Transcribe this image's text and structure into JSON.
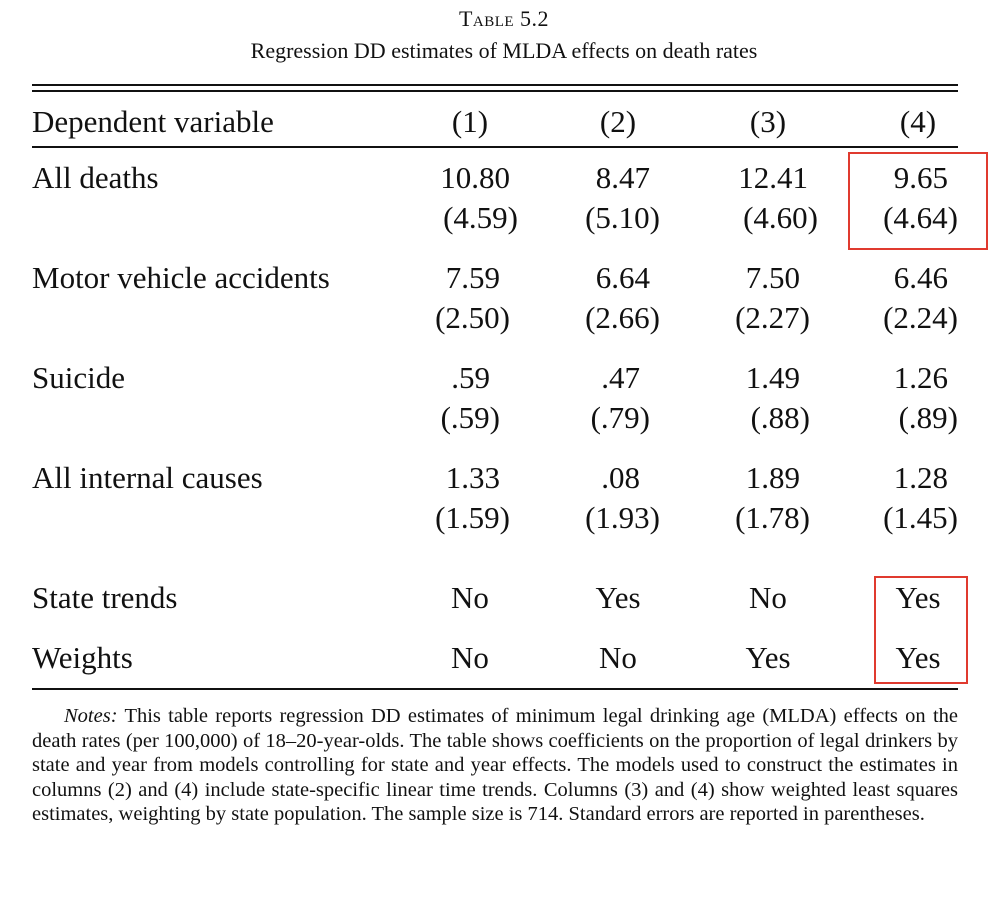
{
  "table": {
    "label": "Table 5.2",
    "title": "Regression DD estimates of MLDA effects on death rates",
    "header": {
      "row_label": "Dependent variable",
      "columns": [
        "(1)",
        "(2)",
        "(3)",
        "(4)"
      ]
    },
    "rows": [
      {
        "label": "All deaths",
        "coefs": [
          "10.80",
          "8.47",
          "12.41",
          "9.65"
        ],
        "ses": [
          "(4.59)",
          "(5.10)",
          "(4.60)",
          "(4.64)"
        ]
      },
      {
        "label": "Motor vehicle accidents",
        "coefs": [
          "7.59",
          "6.64",
          "7.50",
          "6.46"
        ],
        "ses": [
          "(2.50)",
          "(2.66)",
          "(2.27)",
          "(2.24)"
        ]
      },
      {
        "label": "Suicide",
        "coefs": [
          ".59",
          ".47",
          "1.49",
          "1.26"
        ],
        "ses": [
          "(.59)",
          "(.79)",
          "(.88)",
          "(.89)"
        ]
      },
      {
        "label": "All internal causes",
        "coefs": [
          "1.33",
          ".08",
          "1.89",
          "1.28"
        ],
        "ses": [
          "(1.59)",
          "(1.93)",
          "(1.78)",
          "(1.45)"
        ]
      }
    ],
    "specs": [
      {
        "label": "State trends",
        "values": [
          "No",
          "Yes",
          "No",
          "Yes"
        ]
      },
      {
        "label": "Weights",
        "values": [
          "No",
          "No",
          "Yes",
          "Yes"
        ]
      }
    ]
  },
  "notes": {
    "label": "Notes:",
    "text": "This table reports regression DD estimates of minimum legal drinking age (MLDA) effects on the death rates (per 100,000) of 18–20-year-olds. The table shows coefficients on the proportion of legal drinkers by state and year from models controlling for state and year effects. The models used to construct the estimates in columns (2) and (4) include state-specific linear time trends. Columns (3) and (4) show weighted least squares estimates, weighting by state population. The sample size is 714. Standard errors are reported in parentheses."
  },
  "highlight_color": "#e03a2f"
}
